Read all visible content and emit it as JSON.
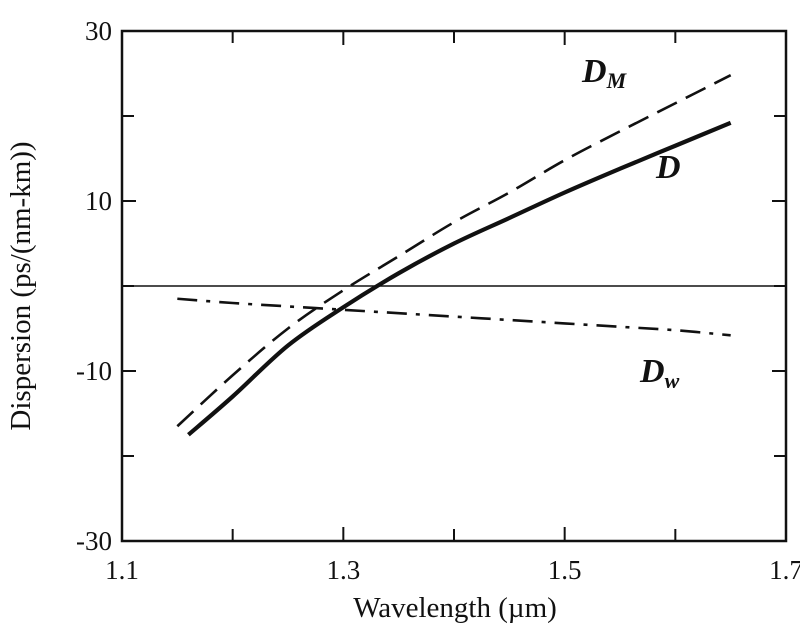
{
  "chart_data": {
    "type": "line",
    "title": "",
    "xlabel": "Wavelength (µm)",
    "ylabel": "Dispersion (ps/(nm-km))",
    "xlim": [
      1.1,
      1.7
    ],
    "ylim": [
      -30,
      30
    ],
    "x_ticks": [
      1.1,
      1.3,
      1.5,
      1.7
    ],
    "x_tick_labels": [
      "1.1",
      "1.3",
      "1.5",
      "1.7"
    ],
    "x_minor_ticks": [
      1.2,
      1.4,
      1.6
    ],
    "y_ticks": [
      30,
      10,
      -10,
      -30
    ],
    "y_tick_labels": [
      "30",
      "10",
      "-10",
      "-30"
    ],
    "y_minor_ticks": [
      20,
      0,
      -20
    ],
    "grid": false,
    "zero_line": true,
    "series": [
      {
        "name": "D_M",
        "label_main": "D",
        "label_sub": "M",
        "style": "dashed",
        "x": [
          1.15,
          1.2,
          1.25,
          1.3,
          1.35,
          1.4,
          1.45,
          1.5,
          1.55,
          1.6,
          1.65
        ],
        "y": [
          -16.5,
          -10.5,
          -5.0,
          -0.5,
          3.5,
          7.5,
          11.0,
          14.8,
          18.2,
          21.5,
          24.8
        ]
      },
      {
        "name": "D",
        "label_main": "D",
        "label_sub": "",
        "style": "solid",
        "x": [
          1.16,
          1.2,
          1.25,
          1.3,
          1.35,
          1.4,
          1.45,
          1.5,
          1.55,
          1.6,
          1.65
        ],
        "y": [
          -17.5,
          -13.0,
          -7.0,
          -2.5,
          1.5,
          5.0,
          8.0,
          11.0,
          13.8,
          16.5,
          19.2
        ]
      },
      {
        "name": "D_w",
        "label_main": "D",
        "label_sub": "w",
        "style": "dashdot",
        "x": [
          1.15,
          1.2,
          1.25,
          1.3,
          1.35,
          1.4,
          1.45,
          1.5,
          1.55,
          1.6,
          1.65
        ],
        "y": [
          -1.5,
          -2.0,
          -2.4,
          -2.8,
          -3.2,
          -3.6,
          -4.0,
          -4.4,
          -4.8,
          -5.2,
          -5.8
        ]
      }
    ]
  }
}
